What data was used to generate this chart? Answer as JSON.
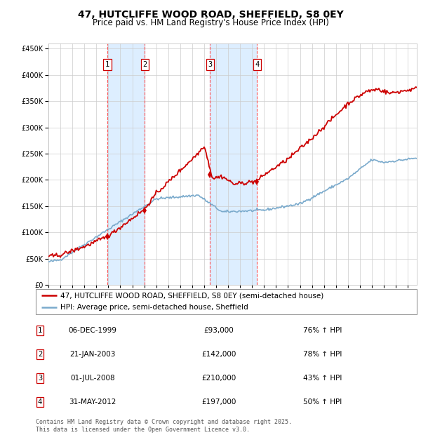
{
  "title": "47, HUTCLIFFE WOOD ROAD, SHEFFIELD, S8 0EY",
  "subtitle": "Price paid vs. HM Land Registry's House Price Index (HPI)",
  "hpi_label": "HPI: Average price, semi-detached house, Sheffield",
  "property_label": "47, HUTCLIFFE WOOD ROAD, SHEFFIELD, S8 0EY (semi-detached house)",
  "footer": "Contains HM Land Registry data © Crown copyright and database right 2025.\nThis data is licensed under the Open Government Licence v3.0.",
  "sale_dates": [
    "06-DEC-1999",
    "21-JAN-2003",
    "01-JUL-2008",
    "31-MAY-2012"
  ],
  "sale_prices": [
    93000,
    142000,
    210000,
    197000
  ],
  "sale_hpi_pct": [
    "76% ↑ HPI",
    "78% ↑ HPI",
    "43% ↑ HPI",
    "50% ↑ HPI"
  ],
  "sale_numeric_dates": [
    1999.92,
    2003.05,
    2008.5,
    2012.41
  ],
  "ylim": [
    0,
    460000
  ],
  "xlim": [
    1995.0,
    2025.75
  ],
  "red_color": "#cc0000",
  "blue_color": "#7aaacc",
  "bg_color": "#ffffff",
  "grid_color": "#cccccc",
  "shade_color": "#ddeeff",
  "dashed_color": "#ff5555",
  "title_fontsize": 10,
  "subtitle_fontsize": 8.5,
  "tick_fontsize": 7,
  "legend_fontsize": 7.5,
  "table_fontsize": 7.5,
  "footer_fontsize": 6
}
